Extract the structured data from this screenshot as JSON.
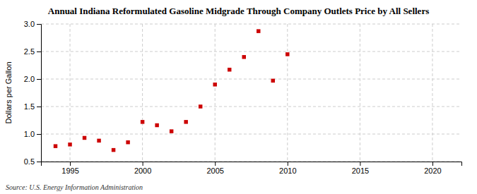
{
  "chart_data": {
    "type": "scatter",
    "title": "Annual Indiana Reformulated Gasoline Midgrade Through Company Outlets Price by All Sellers",
    "ylabel": "Dollars per Gallon",
    "source": "Source: U.S. Energy Information Administration",
    "x": [
      1994,
      1995,
      1996,
      1997,
      1998,
      1999,
      2000,
      2001,
      2002,
      2003,
      2004,
      2005,
      2006,
      2007,
      2008,
      2009,
      2010
    ],
    "values": [
      0.78,
      0.81,
      0.93,
      0.88,
      0.71,
      0.85,
      1.22,
      1.16,
      1.05,
      1.22,
      1.5,
      1.9,
      2.17,
      2.4,
      2.87,
      1.97,
      2.45
    ],
    "color": "#cc0000",
    "marker": "square",
    "xlim": [
      1993,
      2022
    ],
    "ylim": [
      0.5,
      3.0
    ],
    "xticks": [
      1995,
      2000,
      2005,
      2010,
      2015,
      2020
    ],
    "yticks": [
      0.5,
      {
        "value": 1,
        "label": "1.0"
      },
      1.5,
      {
        "value": 2,
        "label": "2.0"
      },
      2.5,
      {
        "value": 3,
        "label": "3.0"
      }
    ],
    "grid": true
  }
}
